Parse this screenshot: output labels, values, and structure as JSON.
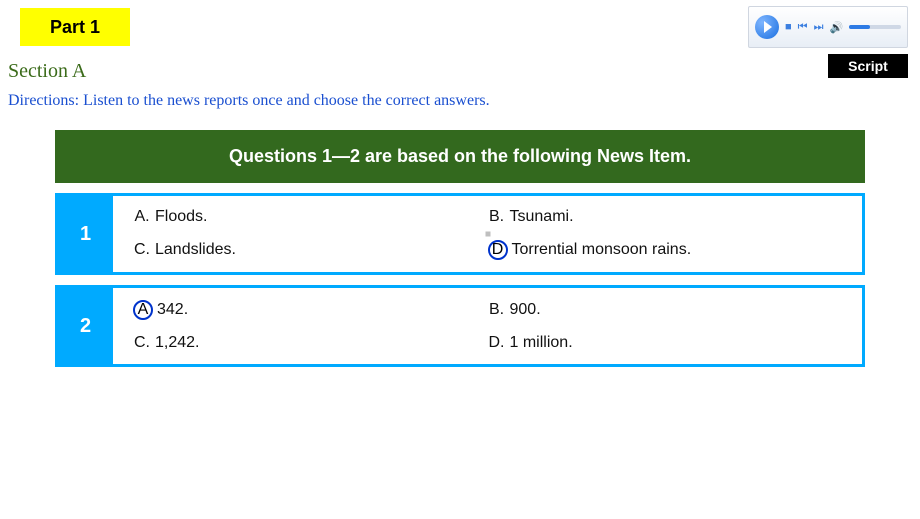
{
  "part_label": "Part 1",
  "script_label": "Script",
  "section_label": "Section A",
  "directions": "Directions: Listen to the news reports once and choose the correct answers.",
  "banner": "Questions 1—2 are based on the following News Item.",
  "media_player": {
    "stop_glyph": "■",
    "prev_glyph": "⏮",
    "next_glyph": "⏭",
    "vol_glyph": "🔊"
  },
  "colors": {
    "part_bg": "#ffff00",
    "script_bg": "#000000",
    "section_text": "#3b6b1a",
    "directions_text": "#1a4fd0",
    "banner_bg": "#33691e",
    "accent": "#00aaff",
    "circle": "#0033cc"
  },
  "questions": [
    {
      "num": "1",
      "options": [
        {
          "letter": "A.",
          "text": "Floods.",
          "circled": false
        },
        {
          "letter": "B.",
          "text": "Tsunami.",
          "circled": false
        },
        {
          "letter": "C.",
          "text": "Landslides.",
          "circled": false
        },
        {
          "letter": "D.",
          "text": "Torrential monsoon rains.",
          "circled": true
        }
      ]
    },
    {
      "num": "2",
      "options": [
        {
          "letter": "A.",
          "text": "342.",
          "circled": true
        },
        {
          "letter": "B.",
          "text": "900.",
          "circled": false
        },
        {
          "letter": "C.",
          "text": "1,242.",
          "circled": false
        },
        {
          "letter": "D.",
          "text": "1 million.",
          "circled": false
        }
      ]
    }
  ]
}
